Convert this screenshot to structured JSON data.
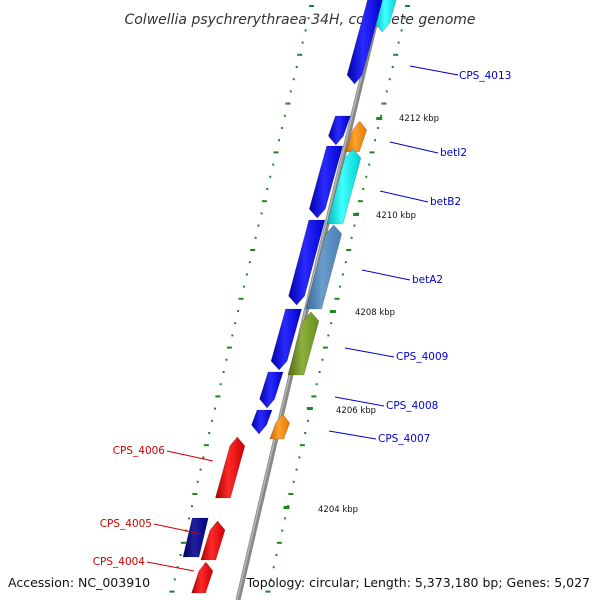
{
  "title": "Colwellia psychrerythraea 34H, complete genome",
  "accession": "Accession: NC_003910",
  "summary": "Topology: circular; Length: 5,373,180 bp; Genes: 5,027",
  "ticks": [
    {
      "label": "4212 kbp"
    },
    {
      "label": "4210 kbp"
    },
    {
      "label": "4208 kbp"
    },
    {
      "label": "4206 kbp"
    },
    {
      "label": "4204 kbp"
    }
  ],
  "genes": [
    {
      "label": "CPS_4013",
      "strand": "forward",
      "color": "#0000cc"
    },
    {
      "label": "betI2",
      "strand": "forward",
      "color": "#0000cc"
    },
    {
      "label": "betB2",
      "strand": "forward",
      "color": "#0000cc"
    },
    {
      "label": "betA2",
      "strand": "forward",
      "color": "#0000cc"
    },
    {
      "label": "CPS_4009",
      "strand": "forward",
      "color": "#0000cc"
    },
    {
      "label": "CPS_4008",
      "strand": "forward",
      "color": "#0000cc"
    },
    {
      "label": "CPS_4007",
      "strand": "forward",
      "color": "#0000cc"
    },
    {
      "label": "CPS_4006",
      "strand": "reverse",
      "color": "#cc0000"
    },
    {
      "label": "CPS_4005",
      "strand": "reverse",
      "color": "#cc0000"
    },
    {
      "label": "CPS_4004",
      "strand": "reverse",
      "color": "#cc0000"
    }
  ],
  "colors": {
    "forward_cds": "#0000ff",
    "reverse_cds": "#ff0000",
    "backbone": "#888888",
    "tick": "#1a8a1a",
    "orange_feature": "#ff8c00",
    "cyan_feature": "#00e5e5",
    "steelblue_feature": "#4682b4",
    "olive_feature": "#6b8e23",
    "navy_feature": "#000080"
  }
}
